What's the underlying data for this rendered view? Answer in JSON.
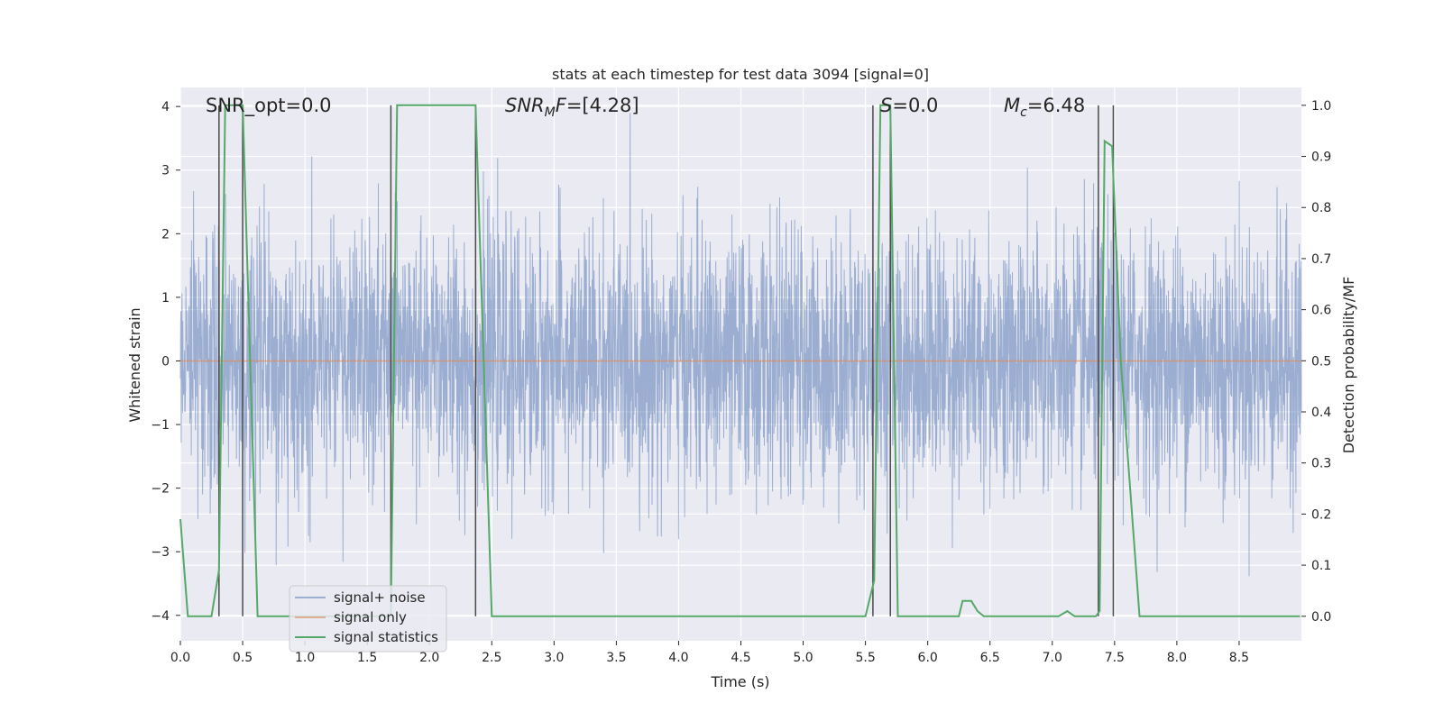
{
  "chart_data": {
    "type": "line",
    "title": "stats at each timestep for test data 3094 [signal=0]",
    "xlabel": "Time (s)",
    "ylabel": "Whitened strain",
    "y2label": "Detection probability/MF",
    "xlim": [
      0.0,
      9.0
    ],
    "ylim": [
      -4.4,
      4.3
    ],
    "y2lim": [
      -0.048,
      1.035
    ],
    "grid": true,
    "xticks": [
      "0.0",
      "0.5",
      "1.0",
      "1.5",
      "2.0",
      "2.5",
      "3.0",
      "3.5",
      "4.0",
      "4.5",
      "5.0",
      "5.5",
      "6.0",
      "6.5",
      "7.0",
      "7.5",
      "8.0",
      "8.5"
    ],
    "yticks": [
      "−4",
      "−3",
      "−2",
      "−1",
      "0",
      "1",
      "2",
      "3",
      "4"
    ],
    "y2ticks": [
      "0.0",
      "0.1",
      "0.2",
      "0.3",
      "0.4",
      "0.5",
      "0.6",
      "0.7",
      "0.8",
      "0.9",
      "1.0"
    ],
    "annotations": {
      "snr_opt": "SNR_opt=0.0",
      "snr_mf_main": "SNR",
      "snr_mf_sub": "M",
      "snr_mf_rest": "F=[4.28]",
      "s_main": "S",
      "s_rest": "=0.0",
      "mc_main": "M",
      "mc_sub": "c",
      "mc_rest": "=6.48"
    },
    "legend": {
      "position": "lower-left",
      "entries": [
        "signal+ noise",
        "signal only",
        "signal statistics"
      ]
    },
    "series": [
      {
        "name": "signal+ noise",
        "color": "#4c72b0",
        "kind": "noise",
        "noise_sigma": 1.0,
        "noise_max_abs": 3.9,
        "samples": 4096
      },
      {
        "name": "signal only",
        "color": "#dd8452",
        "values": "zero"
      },
      {
        "name": "signal statistics",
        "color": "#55a868",
        "axis": "right",
        "x": [
          0.0,
          0.06,
          0.1,
          0.25,
          0.31,
          0.36,
          0.4,
          0.5,
          0.62,
          0.9,
          1.6,
          1.69,
          1.74,
          1.8,
          2.37,
          2.5,
          2.8,
          5.5,
          5.57,
          5.62,
          5.7,
          5.76,
          5.8,
          6.25,
          6.28,
          6.35,
          6.4,
          6.45,
          7.05,
          7.12,
          7.18,
          7.35,
          7.38,
          7.42,
          7.48,
          7.55,
          7.7,
          8.99
        ],
        "y": [
          0.19,
          0.0,
          0.0,
          0.0,
          0.09,
          1.0,
          1.0,
          1.0,
          0.0,
          0.0,
          0.0,
          0.0,
          1.0,
          1.0,
          1.0,
          0.0,
          0.0,
          0.0,
          0.07,
          1.0,
          1.0,
          0.0,
          0.0,
          0.0,
          0.03,
          0.03,
          0.01,
          0.0,
          0.0,
          0.01,
          0.0,
          0.0,
          0.01,
          0.93,
          0.92,
          0.5,
          0.0,
          0.0
        ]
      }
    ],
    "vlines": {
      "color": "#4a4a4a",
      "x": [
        0.31,
        0.5,
        1.69,
        2.37,
        5.56,
        5.7,
        7.37,
        7.49
      ]
    }
  },
  "colors": {
    "axes_bg": "#eaeaf2",
    "grid": "#ffffff",
    "text": "#262626"
  }
}
